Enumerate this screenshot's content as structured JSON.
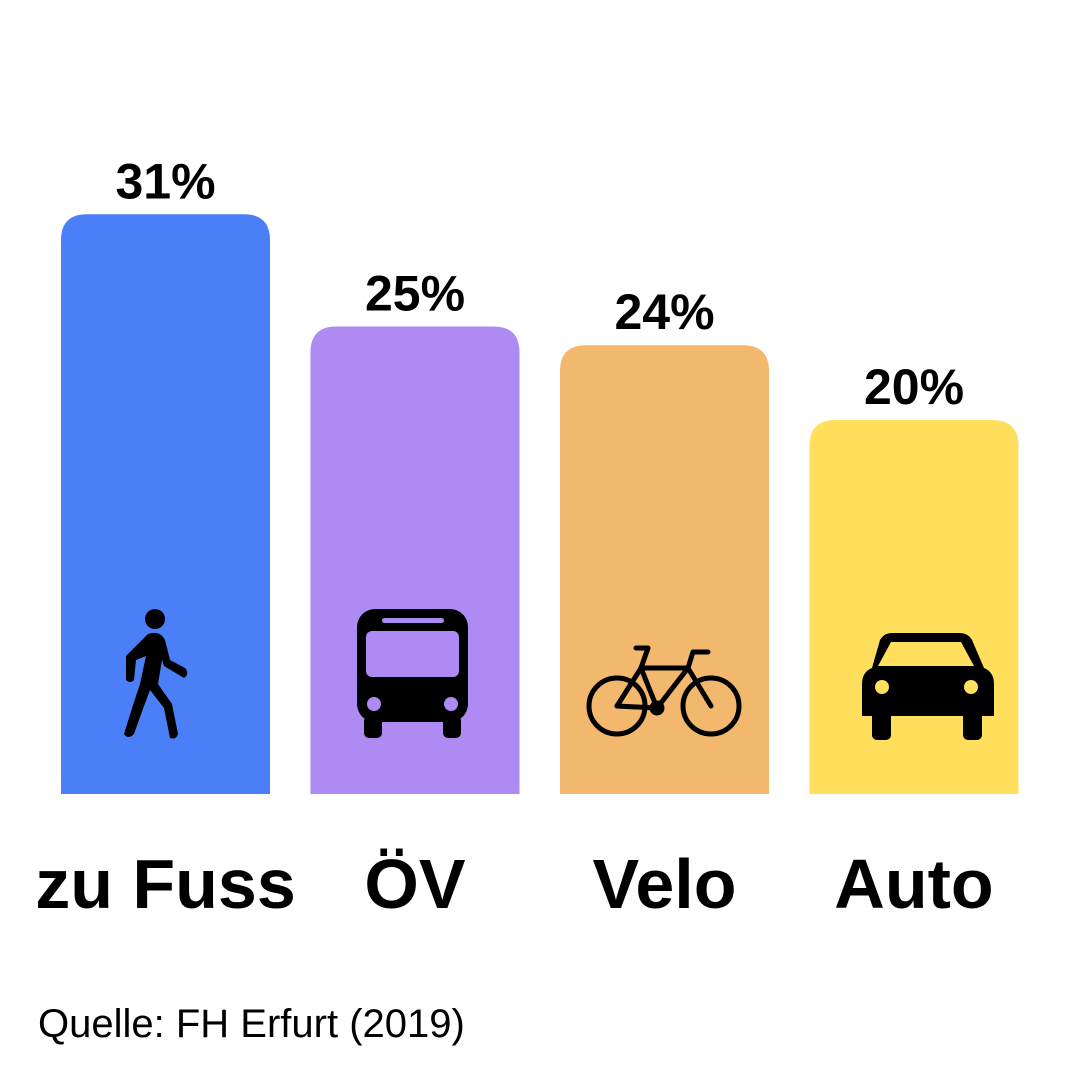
{
  "chart_data": {
    "type": "bar",
    "categories": [
      "zu Fuss",
      "ÖV",
      "Velo",
      "Auto"
    ],
    "values": [
      31,
      25,
      24,
      20
    ],
    "value_labels": [
      "31%",
      "25%",
      "24%",
      "20%"
    ],
    "unit": "%",
    "colors": [
      "#4A7FF7",
      "#AD8BF3",
      "#F2B86E",
      "#FFDF5C"
    ],
    "icons": [
      "pedestrian-icon",
      "bus-icon",
      "bicycle-icon",
      "car-icon"
    ],
    "title": "",
    "xlabel": "",
    "ylabel": "",
    "grid": false,
    "legend": "none"
  },
  "source": "Quelle: FH Erfurt (2019)"
}
